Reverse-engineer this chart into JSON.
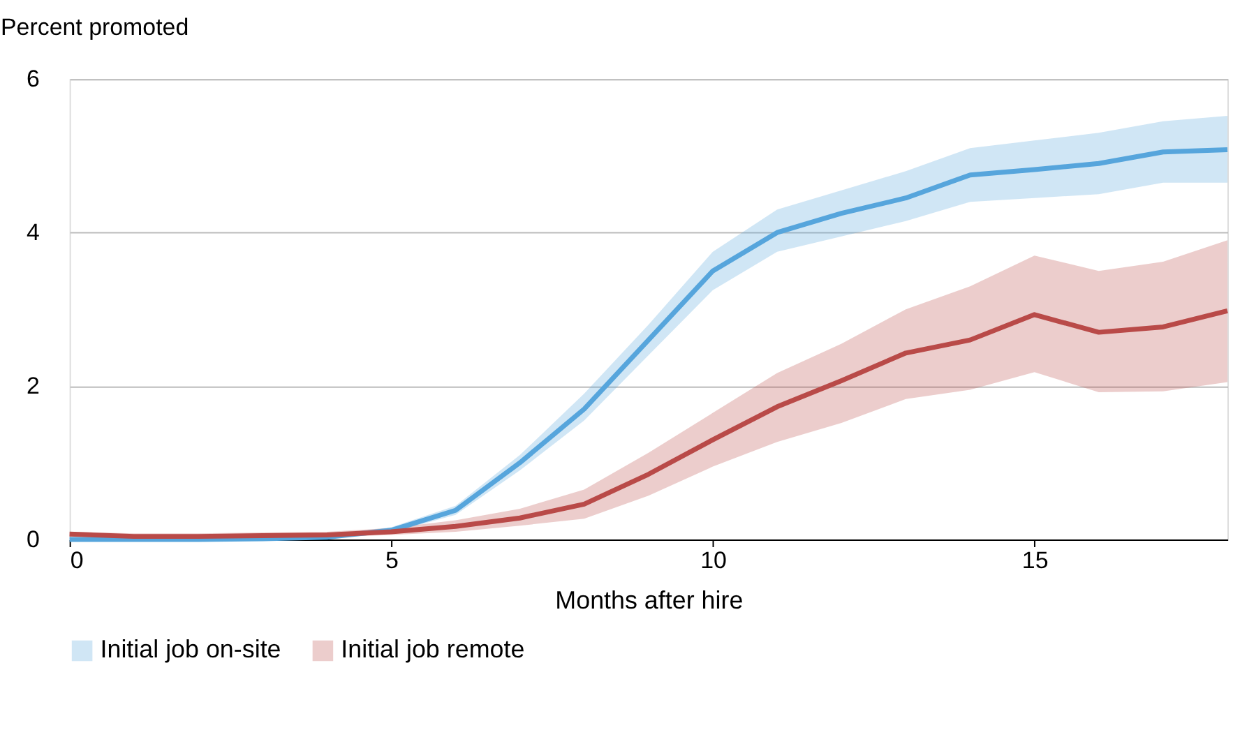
{
  "chart_data": {
    "type": "line",
    "xlabel": "Months after hire",
    "ylabel": "Percent promoted",
    "x": [
      0,
      1,
      2,
      3,
      4,
      5,
      6,
      7,
      8,
      9,
      10,
      11,
      12,
      13,
      14,
      15,
      16,
      17,
      18
    ],
    "xlim": [
      0,
      18
    ],
    "xticks": [
      0,
      5,
      10,
      15
    ],
    "ylim": [
      0,
      6
    ],
    "yticks": [
      0,
      2,
      4,
      6
    ],
    "grid": "y",
    "legend": "bottom",
    "marker": "none",
    "line_style": "solid",
    "series": [
      {
        "name": "Initial job on-site",
        "color": "#56a5dc",
        "values": [
          0,
          0,
          0,
          0.01,
          0.03,
          0.12,
          0.38,
          1.0,
          1.7,
          2.6,
          3.5,
          4.0,
          4.25,
          4.45,
          4.75,
          4.82,
          4.9,
          5.05,
          5.08
        ],
        "lower": [
          0,
          0,
          0,
          0,
          0.01,
          0.09,
          0.32,
          0.9,
          1.55,
          2.4,
          3.25,
          3.75,
          3.95,
          4.15,
          4.4,
          4.45,
          4.5,
          4.65,
          4.65
        ],
        "upper": [
          0.03,
          0.03,
          0.03,
          0.04,
          0.06,
          0.16,
          0.44,
          1.1,
          1.9,
          2.8,
          3.75,
          4.3,
          4.55,
          4.8,
          5.1,
          5.2,
          5.3,
          5.45,
          5.52
        ]
      },
      {
        "name": "Initial job remote",
        "color": "#b94a48",
        "values": [
          0.07,
          0.04,
          0.04,
          0.05,
          0.06,
          0.1,
          0.17,
          0.28,
          0.46,
          0.85,
          1.3,
          1.73,
          2.07,
          2.43,
          2.6,
          2.93,
          2.7,
          2.77,
          2.98
        ],
        "lower": [
          0.04,
          0.01,
          0.01,
          0.02,
          0.03,
          0.06,
          0.1,
          0.18,
          0.27,
          0.57,
          0.95,
          1.27,
          1.52,
          1.83,
          1.95,
          2.18,
          1.92,
          1.93,
          2.05
        ],
        "upper": [
          0.1,
          0.08,
          0.08,
          0.09,
          0.1,
          0.15,
          0.25,
          0.4,
          0.65,
          1.13,
          1.65,
          2.17,
          2.55,
          3.0,
          3.3,
          3.7,
          3.5,
          3.62,
          3.9
        ]
      }
    ]
  }
}
